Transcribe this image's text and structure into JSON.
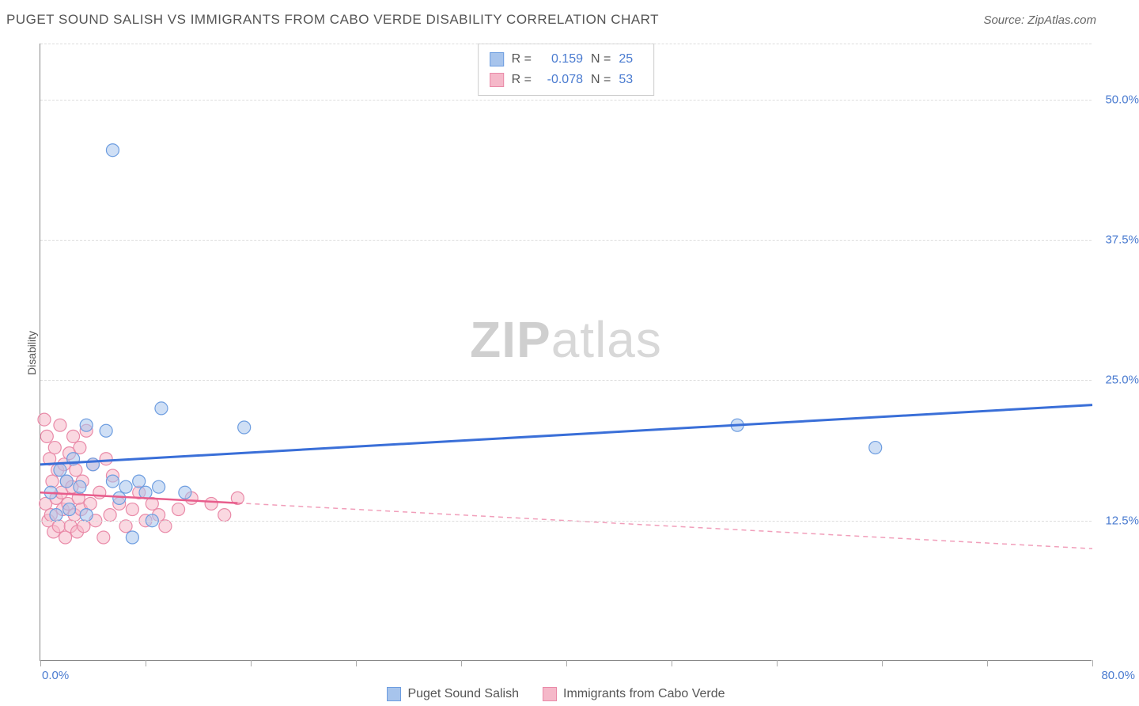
{
  "header": {
    "title": "PUGET SOUND SALISH VS IMMIGRANTS FROM CABO VERDE DISABILITY CORRELATION CHART",
    "source": "Source: ZipAtlas.com"
  },
  "watermark": {
    "part1": "ZIP",
    "part2": "atlas"
  },
  "y_axis_title": "Disability",
  "chart": {
    "type": "scatter",
    "xlim": [
      0,
      80
    ],
    "ylim": [
      0,
      55
    ],
    "x_tick_positions": [
      0,
      8,
      16,
      24,
      32,
      40,
      48,
      56,
      64,
      72,
      80
    ],
    "x_min_label": "0.0%",
    "x_max_label": "80.0%",
    "y_gridlines": [
      {
        "val": 12.5,
        "label": "12.5%"
      },
      {
        "val": 25.0,
        "label": "25.0%"
      },
      {
        "val": 37.5,
        "label": "37.5%"
      },
      {
        "val": 50.0,
        "label": "50.0%"
      },
      {
        "val": 55.0,
        "label": ""
      }
    ],
    "background_color": "#ffffff",
    "grid_color": "#dddddd",
    "marker_radius": 8,
    "marker_opacity": 0.55,
    "series": [
      {
        "name": "Puget Sound Salish",
        "color_fill": "#a7c4ec",
        "color_stroke": "#6d9de0",
        "R": "0.159",
        "N": "25",
        "trend": {
          "x1": 0,
          "y1": 17.5,
          "x2": 80,
          "y2": 22.8,
          "solid_until_x": 80,
          "stroke": "#3a6fd8",
          "width": 3
        },
        "points": [
          [
            5.5,
            45.5
          ],
          [
            9.2,
            22.5
          ],
          [
            15.5,
            20.8
          ],
          [
            53.0,
            21.0
          ],
          [
            63.5,
            19.0
          ],
          [
            0.8,
            15.0
          ],
          [
            1.5,
            17.0
          ],
          [
            2.0,
            16.0
          ],
          [
            2.5,
            18.0
          ],
          [
            3.0,
            15.5
          ],
          [
            3.5,
            21.0
          ],
          [
            4.0,
            17.5
          ],
          [
            5.0,
            20.5
          ],
          [
            5.5,
            16.0
          ],
          [
            6.0,
            14.5
          ],
          [
            6.5,
            15.5
          ],
          [
            7.0,
            11.0
          ],
          [
            7.5,
            16.0
          ],
          [
            8.0,
            15.0
          ],
          [
            8.5,
            12.5
          ],
          [
            9.0,
            15.5
          ],
          [
            11.0,
            15.0
          ],
          [
            1.2,
            13.0
          ],
          [
            2.2,
            13.5
          ],
          [
            3.5,
            13.0
          ]
        ]
      },
      {
        "name": "Immigrants from Cabo Verde",
        "color_fill": "#f5b8c9",
        "color_stroke": "#e98aa8",
        "R": "-0.078",
        "N": "53",
        "trend": {
          "x1": 0,
          "y1": 15.0,
          "x2": 80,
          "y2": 10.0,
          "solid_until_x": 15,
          "stroke": "#e85d8c",
          "width": 2.5
        },
        "points": [
          [
            0.3,
            21.5
          ],
          [
            0.4,
            14.0
          ],
          [
            0.5,
            20.0
          ],
          [
            0.6,
            12.5
          ],
          [
            0.7,
            18.0
          ],
          [
            0.8,
            13.0
          ],
          [
            0.9,
            16.0
          ],
          [
            1.0,
            11.5
          ],
          [
            1.1,
            19.0
          ],
          [
            1.2,
            14.5
          ],
          [
            1.3,
            17.0
          ],
          [
            1.4,
            12.0
          ],
          [
            1.5,
            21.0
          ],
          [
            1.6,
            15.0
          ],
          [
            1.7,
            13.5
          ],
          [
            1.8,
            17.5
          ],
          [
            1.9,
            11.0
          ],
          [
            2.0,
            16.0
          ],
          [
            2.1,
            14.0
          ],
          [
            2.2,
            18.5
          ],
          [
            2.3,
            12.0
          ],
          [
            2.4,
            15.5
          ],
          [
            2.5,
            20.0
          ],
          [
            2.6,
            13.0
          ],
          [
            2.7,
            17.0
          ],
          [
            2.8,
            11.5
          ],
          [
            2.9,
            14.5
          ],
          [
            3.0,
            19.0
          ],
          [
            3.1,
            13.5
          ],
          [
            3.2,
            16.0
          ],
          [
            3.3,
            12.0
          ],
          [
            3.5,
            20.5
          ],
          [
            3.8,
            14.0
          ],
          [
            4.0,
            17.5
          ],
          [
            4.2,
            12.5
          ],
          [
            4.5,
            15.0
          ],
          [
            4.8,
            11.0
          ],
          [
            5.0,
            18.0
          ],
          [
            5.3,
            13.0
          ],
          [
            5.5,
            16.5
          ],
          [
            6.0,
            14.0
          ],
          [
            6.5,
            12.0
          ],
          [
            7.0,
            13.5
          ],
          [
            7.5,
            15.0
          ],
          [
            8.0,
            12.5
          ],
          [
            8.5,
            14.0
          ],
          [
            9.0,
            13.0
          ],
          [
            9.5,
            12.0
          ],
          [
            10.5,
            13.5
          ],
          [
            11.5,
            14.5
          ],
          [
            13.0,
            14.0
          ],
          [
            14.0,
            13.0
          ],
          [
            15.0,
            14.5
          ]
        ]
      }
    ]
  },
  "stat_box": {
    "r_label": "R =",
    "n_label": "N ="
  },
  "legend": {
    "items": [
      {
        "label": "Puget Sound Salish",
        "fill": "#a7c4ec",
        "stroke": "#6d9de0"
      },
      {
        "label": "Immigrants from Cabo Verde",
        "fill": "#f5b8c9",
        "stroke": "#e98aa8"
      }
    ]
  }
}
